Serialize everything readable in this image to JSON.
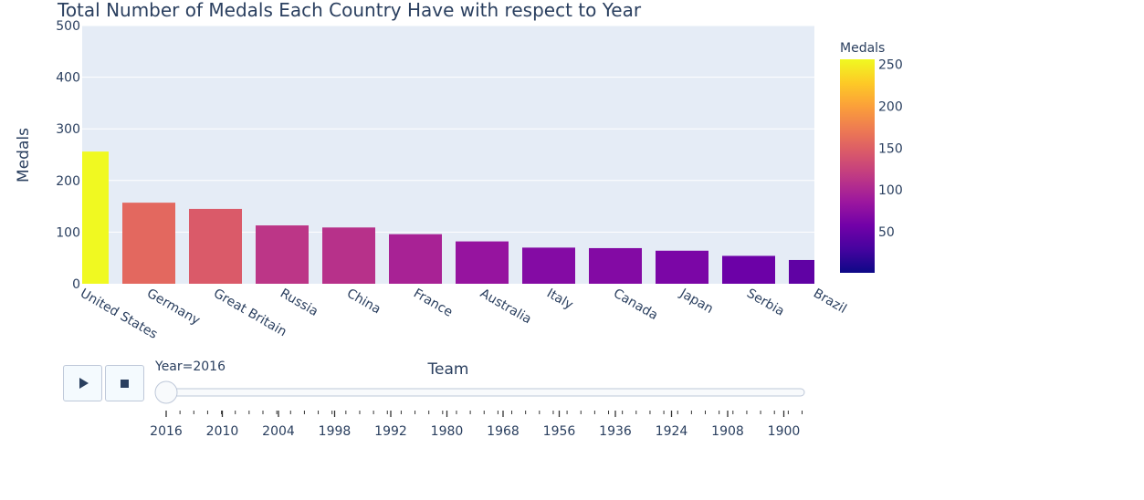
{
  "chart_data": {
    "type": "bar",
    "title": "Total Number of Medals Each Country Have with respect to Year",
    "xlabel": "Team",
    "ylabel": "Medals",
    "categories": [
      "United States",
      "Germany",
      "Great Britain",
      "Russia",
      "China",
      "France",
      "Australia",
      "Italy",
      "Canada",
      "Japan",
      "Serbia",
      "Brazil"
    ],
    "values": [
      256,
      157,
      145,
      113,
      109,
      96,
      82,
      70,
      69,
      64,
      54,
      46
    ],
    "ylim": [
      0,
      500
    ],
    "yticks": [
      0,
      100,
      200,
      300,
      400,
      500
    ],
    "grid": true,
    "colorbar": {
      "title": "Medals",
      "range": [
        1,
        256
      ],
      "ticks": [
        50,
        100,
        150,
        200,
        250
      ]
    }
  },
  "slider": {
    "current_label": "Year=2016",
    "value": "2016",
    "tick_labels": [
      "2016",
      "2010",
      "2004",
      "1998",
      "1992",
      "1980",
      "1968",
      "1956",
      "1936",
      "1924",
      "1908",
      "1900"
    ]
  },
  "controls": {
    "play_icon": "play-icon",
    "stop_icon": "stop-icon"
  }
}
